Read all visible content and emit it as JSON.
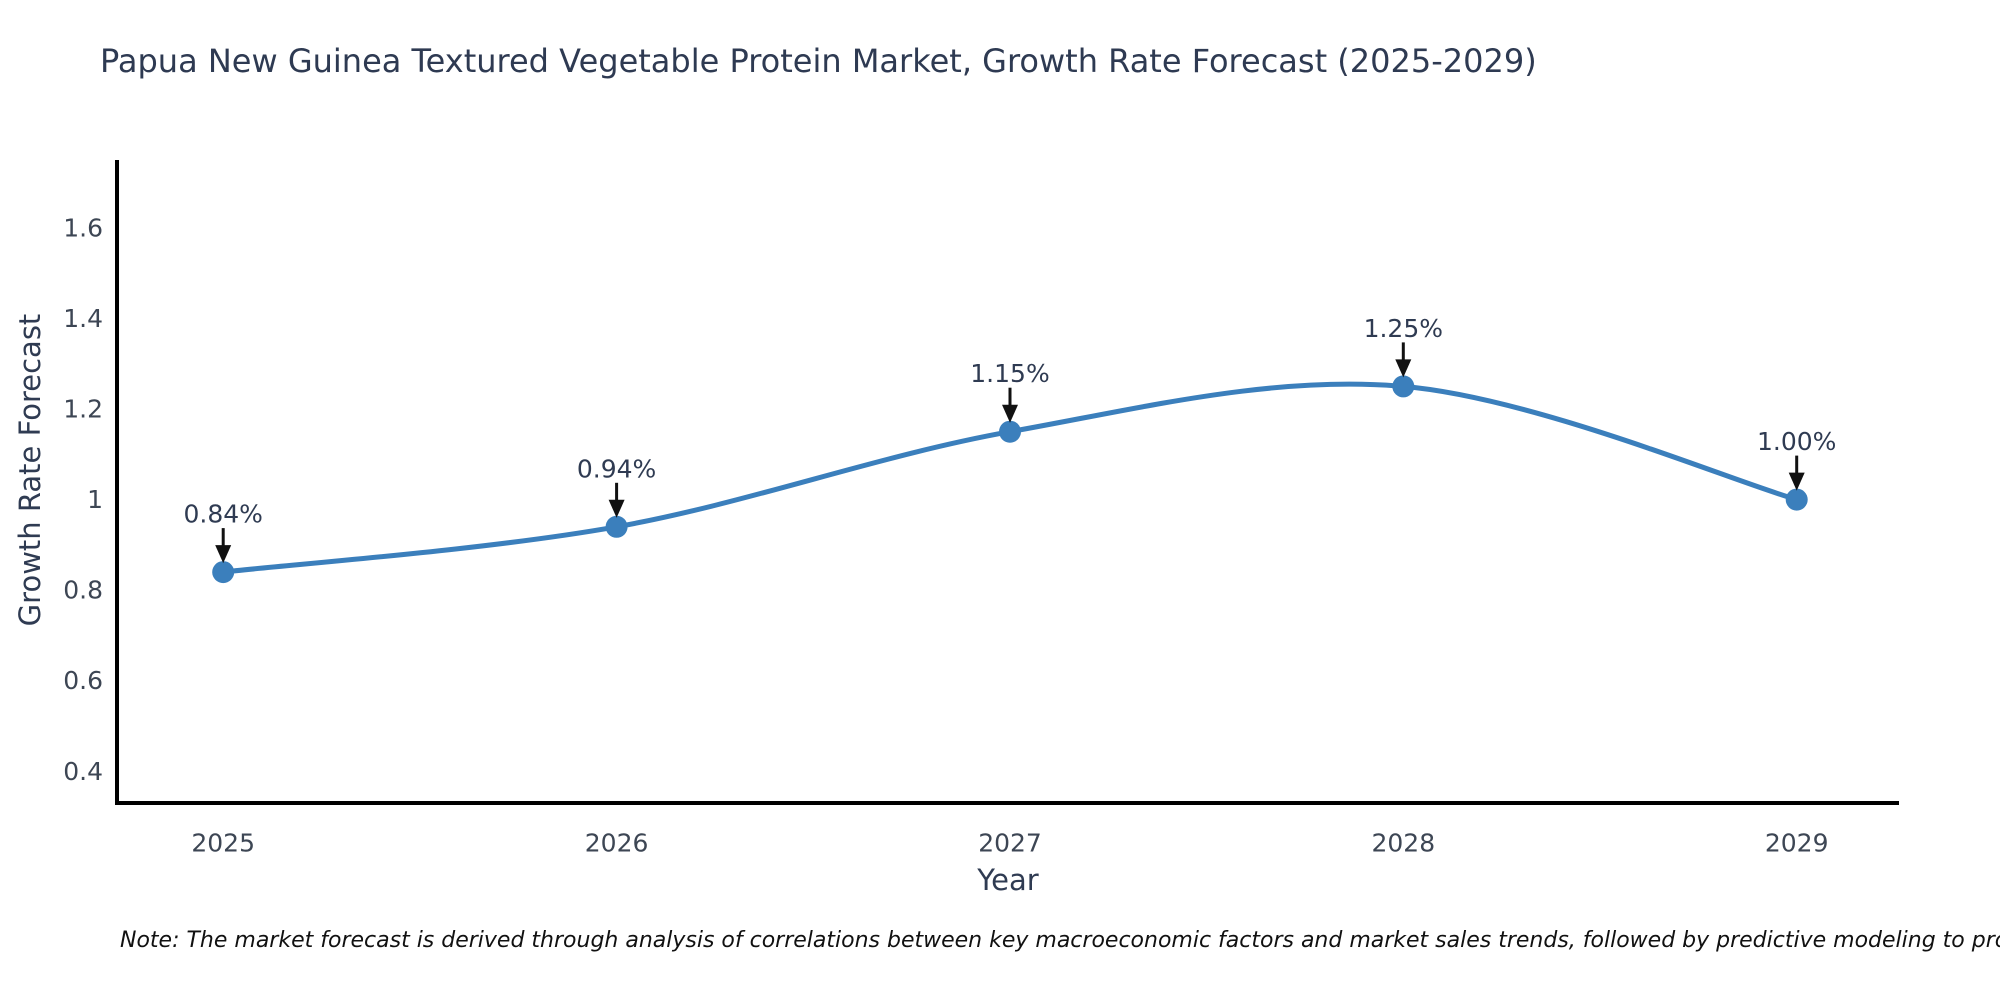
{
  "page": {
    "background": "#ffffff"
  },
  "chart_data": {
    "type": "line",
    "title": "Papua New Guinea Textured Vegetable Protein Market, Growth Rate Forecast (2025-2029)",
    "xlabel": "Year",
    "ylabel": "Growth Rate Forecast",
    "x": [
      2025,
      2026,
      2027,
      2028,
      2029
    ],
    "values": [
      0.84,
      0.94,
      1.15,
      1.25,
      1.0
    ],
    "point_labels": [
      "0.84%",
      "0.94%",
      "1.15%",
      "1.25%",
      "1.00%"
    ],
    "xtick_labels": [
      "2025",
      "2026",
      "2027",
      "2028",
      "2029"
    ],
    "yticks": [
      0.4,
      0.6,
      0.8,
      1,
      1.2,
      1.4,
      1.6
    ],
    "ytick_labels": [
      "0.4",
      "0.6",
      "0.8",
      "1",
      "1.2",
      "1.4",
      "1.6"
    ],
    "xlim": [
      2024.73,
      2029.26
    ],
    "ylim": [
      0.33,
      1.75
    ],
    "grid": false,
    "legend": false,
    "line_shape": "spline",
    "markers": true,
    "colors": {
      "line": "#3b7fbc",
      "marker": "#3b7fbc",
      "spine": "#000000",
      "title": "#2e3a52",
      "axis_title": "#2f3b52",
      "tick": "#3d4654",
      "annotation_text": "#2f3b52",
      "arrow": "#111111"
    }
  },
  "note": {
    "text": "Note: The market forecast is derived through analysis of correlations between key macroeconomic factors and market sales trends, followed by predictive modeling to project future sales"
  }
}
